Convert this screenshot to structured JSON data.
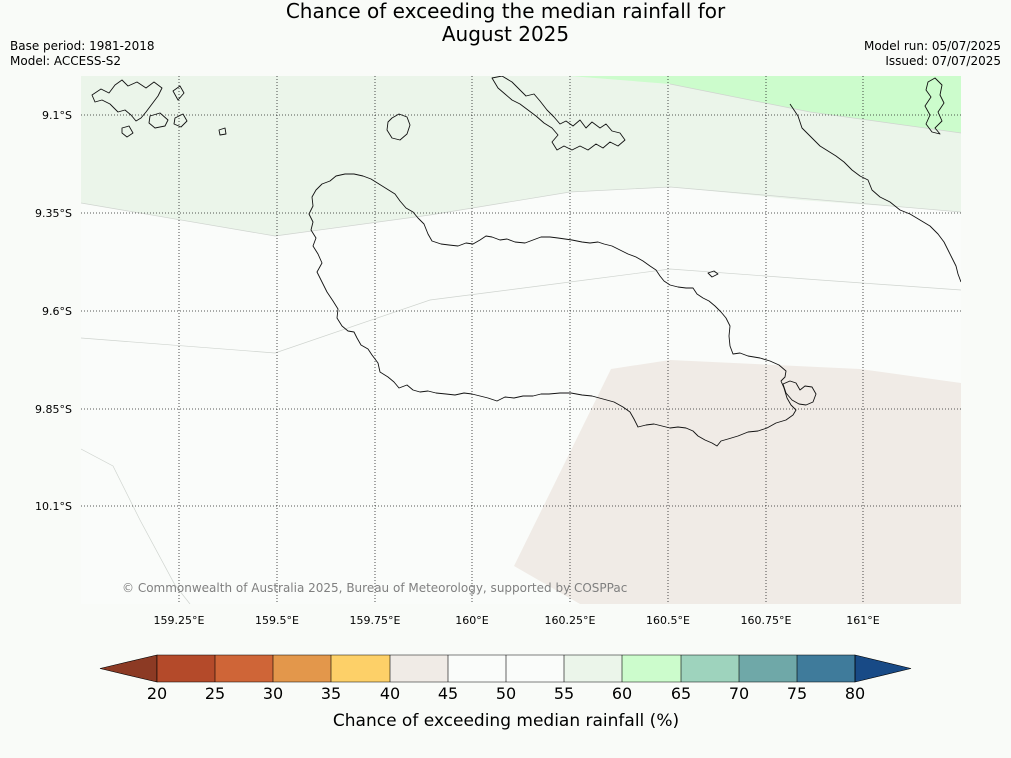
{
  "title": {
    "line1": "Chance of exceeding the median rainfall for",
    "line2": "August 2025"
  },
  "meta": {
    "base_period": "Base period: 1981-2018",
    "model": "Model: ACCESS-S2",
    "model_run": "Model run: 05/07/2025",
    "issued": "Issued: 07/07/2025"
  },
  "map": {
    "lon_ticks": [
      "159.25°E",
      "159.5°E",
      "159.75°E",
      "160°E",
      "160.25°E",
      "160.5°E",
      "160.75°E",
      "161°E"
    ],
    "lat_ticks": [
      "9.1°S",
      "9.35°S",
      "9.6°S",
      "9.85°S",
      "10.1°S"
    ],
    "copyright": "© Commonwealth of Australia 2025, Bureau of Meteorology, supported by COSPPac"
  },
  "legend": {
    "label": "Chance of exceeding median rainfall (%)",
    "ticks": [
      "20",
      "25",
      "30",
      "35",
      "40",
      "45",
      "50",
      "55",
      "60",
      "65",
      "70",
      "75",
      "80"
    ],
    "colors": {
      "below_20": "#8c3a24",
      "20-25": "#b44a2a",
      "25-30": "#cf6537",
      "30-35": "#e3974b",
      "35-40": "#fdd068",
      "40-45": "#f0ebe6",
      "45-50": "#fafcfa",
      "50-55": "#fafcfa",
      "55-60": "#ebf5ea",
      "60-65": "#ccfccc",
      "65-70": "#9ed3bd",
      "70-75": "#6fa8a8",
      "75-80": "#3f7b9b",
      "above_80": "#184a86"
    }
  }
}
